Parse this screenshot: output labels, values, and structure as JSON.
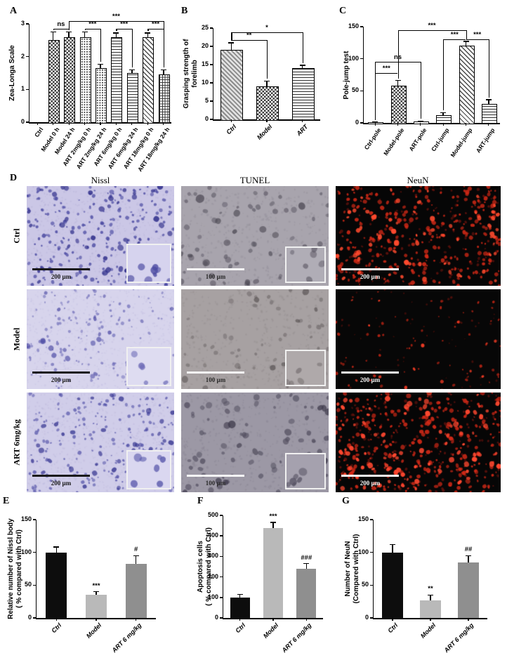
{
  "panel_labels": {
    "A": "A",
    "B": "B",
    "C": "C",
    "D": "D",
    "E": "E",
    "F": "F",
    "G": "G"
  },
  "chart_data": [
    {
      "panel": "A",
      "type": "bar",
      "ylabel": "Zea-Longa Scale",
      "ylim": [
        0,
        3
      ],
      "yticks": [
        0,
        1,
        2,
        3
      ],
      "categories": [
        "Ctrl",
        "Model 0 h",
        "Model 24 h",
        "ART 2mg/kg 0 h",
        "ART 2mg/kg 24 h",
        "ART 6mg/kg 0 h",
        "ART 6mg/kg 24 h",
        "ART 18mg/kg 0 h",
        "ART 18mg/kg 24 h"
      ],
      "values": [
        0,
        2.5,
        2.6,
        2.6,
        1.65,
        2.6,
        1.5,
        2.6,
        1.45
      ],
      "errors": [
        0,
        0.25,
        0.15,
        0.15,
        0.12,
        0.12,
        0.1,
        0.12,
        0.15
      ],
      "patterns": [
        "plain",
        "checker",
        "checker",
        "dots",
        "dots",
        "hlines",
        "hlines",
        "diag",
        "grid"
      ],
      "significance": [
        {
          "from": 1,
          "to": 2,
          "label": "ns",
          "level": 2.86
        },
        {
          "from": 3,
          "to": 4,
          "label": "***",
          "level": 2.86
        },
        {
          "from": 5,
          "to": 6,
          "label": "***",
          "level": 2.86
        },
        {
          "from": 7,
          "to": 8,
          "label": "***",
          "level": 2.86
        },
        {
          "from": 2,
          "to": 8,
          "label": "***",
          "level": 3.08
        }
      ]
    },
    {
      "panel": "B",
      "type": "bar",
      "ylabel_lines": [
        "Grasping strength of",
        "forelimb"
      ],
      "ylim": [
        0,
        25
      ],
      "yticks": [
        0,
        5,
        10,
        15,
        20,
        25
      ],
      "categories": [
        "Ctrl",
        "Model",
        "ART"
      ],
      "values": [
        19,
        9,
        14
      ],
      "errors": [
        2,
        1.5,
        0.8
      ],
      "patterns": [
        "diag2",
        "checker",
        "hlines"
      ],
      "significance": [
        {
          "from": 0,
          "to": 1,
          "label": "**",
          "level": 21.8
        },
        {
          "from": 0,
          "to": 2,
          "label": "*",
          "level": 23.8
        }
      ]
    },
    {
      "panel": "C",
      "type": "bar",
      "ylabel": "Pole-jump test",
      "ylim": [
        0,
        150
      ],
      "yticks": [
        0,
        50,
        100,
        150
      ],
      "categories": [
        "Ctrl-pole",
        "Model-pole",
        "ART-pole",
        "Ctrl-jump",
        "Model-jump",
        "ART-jump"
      ],
      "values": [
        1,
        58,
        2,
        12,
        120,
        30
      ],
      "errors": [
        0.5,
        8,
        1,
        4,
        7,
        6
      ],
      "patterns": [
        "plain",
        "checker",
        "plain",
        "hlines",
        "diag",
        "hlines"
      ],
      "significance": [
        {
          "from": 0,
          "to": 1,
          "label": "***",
          "level": 78
        },
        {
          "from": 0,
          "to": 2,
          "label": "ns",
          "level": 95
        },
        {
          "from": 3,
          "to": 4,
          "label": "***",
          "level": 130
        },
        {
          "from": 4,
          "to": 5,
          "label": "***",
          "level": 130
        },
        {
          "from": 1,
          "to": 4,
          "label": "***",
          "level": 145
        }
      ]
    },
    {
      "panel": "E",
      "type": "bar",
      "ylabel_lines": [
        "Relative number of Nissl body",
        "( % compared with Ctrl)"
      ],
      "ylim": [
        0,
        150
      ],
      "yticks": [
        0,
        50,
        100,
        150
      ],
      "categories": [
        "Ctrl",
        "Model",
        "ART 6 mg/kg"
      ],
      "values": [
        100,
        35,
        82
      ],
      "errors": [
        8,
        5,
        13
      ],
      "colors": [
        "#0d0d0d",
        "#b9b9b9",
        "#8f8f8f"
      ],
      "bar_annotations": [
        {
          "bar": 1,
          "label": "***"
        },
        {
          "bar": 2,
          "label": "#"
        }
      ]
    },
    {
      "panel": "F",
      "type": "bar",
      "ylabel_lines": [
        "Apoptosis cells",
        "( % compared with Ctrl)"
      ],
      "ylim": [
        0,
        500
      ],
      "yticks": [
        0,
        100,
        200,
        300,
        400,
        500
      ],
      "categories": [
        "Ctrl",
        "Model",
        "ART 6 mg/kg"
      ],
      "values": [
        100,
        440,
        240
      ],
      "errors": [
        15,
        25,
        25
      ],
      "colors": [
        "#0d0d0d",
        "#b9b9b9",
        "#8f8f8f"
      ],
      "bar_annotations": [
        {
          "bar": 1,
          "label": "***"
        },
        {
          "bar": 2,
          "label": "###"
        }
      ]
    },
    {
      "panel": "G",
      "type": "bar",
      "ylabel_lines": [
        "Number of NeuN",
        "(Compared with Ctrl)"
      ],
      "ylim": [
        0,
        150
      ],
      "yticks": [
        0,
        50,
        100,
        150
      ],
      "categories": [
        "Ctrl",
        "Model",
        "ART 6 mg/kg"
      ],
      "values": [
        100,
        27,
        85
      ],
      "errors": [
        12,
        8,
        10
      ],
      "colors": [
        "#0d0d0d",
        "#b9b9b9",
        "#8f8f8f"
      ],
      "bar_annotations": [
        {
          "bar": 1,
          "label": "**"
        },
        {
          "bar": 2,
          "label": "##"
        }
      ]
    }
  ],
  "panel_d": {
    "columns": [
      "Nissl",
      "TUNEL",
      "NeuN"
    ],
    "rows": [
      "Ctrl",
      "Model",
      "ART 6mg/kg"
    ],
    "images": [
      {
        "row": "Ctrl",
        "col": "Nissl",
        "scale_bar_label": "200 µm",
        "scale_bar_color": "#1a1a1a",
        "scale_text_color": "#1a1a1a",
        "inset": true,
        "inset_w": 60,
        "inset_h": 52,
        "inset_bg": "#d6d3ee",
        "bg": "#cbc7e6",
        "layers": [
          {
            "count": 900,
            "color": "#b7b2d8",
            "rmin": 0.4,
            "rmax": 1.4,
            "alpha": 0.55
          },
          {
            "count": 230,
            "color": "#4b4aa2",
            "rmin": 1.2,
            "rmax": 3.0,
            "alpha": 0.85
          },
          {
            "count": 45,
            "color": "#32318c",
            "rmin": 2.4,
            "rmax": 4.4,
            "alpha": 0.9
          }
        ],
        "inset_cells": {
          "count": 8,
          "color": "#4b4aa2",
          "rmin": 3,
          "rmax": 6,
          "alpha": 0.85
        }
      },
      {
        "row": "Ctrl",
        "col": "TUNEL",
        "scale_bar_label": "100 µm",
        "scale_bar_color": "#f5f5f5",
        "scale_text_color": "#2a2a2a",
        "inset": true,
        "inset_w": 54,
        "inset_h": 48,
        "inset_bg": "#b0adb6",
        "bg": "#a8a4ad",
        "layers": [
          {
            "count": 500,
            "color": "#96929c",
            "rmin": 0.5,
            "rmax": 1.8,
            "alpha": 0.6
          },
          {
            "count": 55,
            "color": "#5f5b67",
            "rmin": 2,
            "rmax": 4.5,
            "alpha": 0.7
          },
          {
            "count": 14,
            "color": "#48444f",
            "rmin": 3.5,
            "rmax": 6,
            "alpha": 0.75
          }
        ],
        "inset_cells": {
          "count": 6,
          "color": "#5f5b67",
          "rmin": 3,
          "rmax": 6,
          "alpha": 0.7
        }
      },
      {
        "row": "Ctrl",
        "col": "NeuN",
        "scale_bar_label": "200 µm",
        "scale_bar_color": "#f5f5f5",
        "scale_text_color": "#f5f5f5",
        "inset": false,
        "bg": "#060606",
        "layers": [
          {
            "count": 130,
            "color": "#6e140e",
            "rmin": 1,
            "rmax": 2.4,
            "alpha": 0.8
          },
          {
            "count": 280,
            "color": "#d32917",
            "rmin": 1.2,
            "rmax": 3.2,
            "alpha": 0.9
          },
          {
            "count": 70,
            "color": "#ff4a2e",
            "rmin": 1.8,
            "rmax": 3.8,
            "alpha": 1
          }
        ]
      },
      {
        "row": "Model",
        "col": "Nissl",
        "scale_bar_label": "200 µm",
        "scale_bar_color": "#1a1a1a",
        "scale_text_color": "#1a1a1a",
        "inset": true,
        "inset_w": 60,
        "inset_h": 52,
        "inset_bg": "#dedcf1",
        "bg": "#d7d4ec",
        "layers": [
          {
            "count": 800,
            "color": "#c5c1e3",
            "rmin": 0.4,
            "rmax": 1.4,
            "alpha": 0.55
          },
          {
            "count": 150,
            "color": "#6f6db8",
            "rmin": 1.0,
            "rmax": 2.6,
            "alpha": 0.75
          },
          {
            "count": 22,
            "color": "#504ea6",
            "rmin": 2.2,
            "rmax": 3.8,
            "alpha": 0.8
          }
        ],
        "inset_cells": {
          "count": 6,
          "color": "#6f6db8",
          "rmin": 3,
          "rmax": 5.5,
          "alpha": 0.75
        }
      },
      {
        "row": "Model",
        "col": "TUNEL",
        "scale_bar_label": "100 µm",
        "scale_bar_color": "#f5f5f5",
        "scale_text_color": "#2a2a2a",
        "inset": true,
        "inset_w": 54,
        "inset_h": 48,
        "inset_bg": "#afa9aa",
        "bg": "#a7a1a2",
        "layers": [
          {
            "count": 500,
            "color": "#969091",
            "rmin": 0.5,
            "rmax": 1.8,
            "alpha": 0.6
          },
          {
            "count": 42,
            "color": "#6e6869",
            "rmin": 2,
            "rmax": 4,
            "alpha": 0.65
          },
          {
            "count": 8,
            "color": "#575152",
            "rmin": 3,
            "rmax": 5,
            "alpha": 0.7
          }
        ],
        "inset_cells": {
          "count": 5,
          "color": "#6e6869",
          "rmin": 3,
          "rmax": 5.5,
          "alpha": 0.65
        }
      },
      {
        "row": "Model",
        "col": "NeuN",
        "scale_bar_label": "200 µm",
        "scale_bar_color": "#f5f5f5",
        "scale_text_color": "#f5f5f5",
        "inset": false,
        "bg": "#070707",
        "layers": [
          {
            "count": 60,
            "color": "#5c120c",
            "rmin": 0.8,
            "rmax": 1.8,
            "alpha": 0.8
          },
          {
            "count": 60,
            "color": "#c02615",
            "rmin": 1,
            "rmax": 2.4,
            "alpha": 0.9
          },
          {
            "count": 14,
            "color": "#f23c24",
            "rmin": 1.4,
            "rmax": 2.8,
            "alpha": 1
          }
        ]
      },
      {
        "row": "ART 6mg/kg",
        "col": "Nissl",
        "scale_bar_label": "200 µm",
        "scale_bar_color": "#1a1a1a",
        "scale_text_color": "#1a1a1a",
        "inset": true,
        "inset_w": 60,
        "inset_h": 52,
        "inset_bg": "#dad7f0",
        "bg": "#d0cde9",
        "layers": [
          {
            "count": 850,
            "color": "#beb9dd",
            "rmin": 0.4,
            "rmax": 1.4,
            "alpha": 0.55
          },
          {
            "count": 200,
            "color": "#5756aa",
            "rmin": 1.1,
            "rmax": 2.8,
            "alpha": 0.8
          },
          {
            "count": 32,
            "color": "#3c3b94",
            "rmin": 2.3,
            "rmax": 4.1,
            "alpha": 0.85
          }
        ],
        "inset_cells": {
          "count": 7,
          "color": "#5756aa",
          "rmin": 3,
          "rmax": 6,
          "alpha": 0.8
        }
      },
      {
        "row": "ART 6mg/kg",
        "col": "TUNEL",
        "scale_bar_label": "100 µm",
        "scale_bar_color": "#f5f5f5",
        "scale_text_color": "#2a2a2a",
        "inset": true,
        "inset_w": 54,
        "inset_h": 48,
        "inset_bg": "#a5a1ae",
        "bg": "#9c98a5",
        "layers": [
          {
            "count": 520,
            "color": "#8b8795",
            "rmin": 0.5,
            "rmax": 1.8,
            "alpha": 0.6
          },
          {
            "count": 65,
            "color": "#545061",
            "rmin": 2,
            "rmax": 4.8,
            "alpha": 0.75
          },
          {
            "count": 16,
            "color": "#403c4d",
            "rmin": 3.5,
            "rmax": 6.2,
            "alpha": 0.8
          }
        ],
        "inset_cells": {
          "count": 6,
          "color": "#545061",
          "rmin": 3,
          "rmax": 6,
          "alpha": 0.75
        }
      },
      {
        "row": "ART 6mg/kg",
        "col": "NeuN",
        "scale_bar_label": "200 µm",
        "scale_bar_color": "#f5f5f5",
        "scale_text_color": "#f5f5f5",
        "inset": false,
        "bg": "#060606",
        "layers": [
          {
            "count": 140,
            "color": "#6e140e",
            "rmin": 1,
            "rmax": 2.5,
            "alpha": 0.8
          },
          {
            "count": 300,
            "color": "#d62a18",
            "rmin": 1.2,
            "rmax": 3.4,
            "alpha": 0.9
          },
          {
            "count": 85,
            "color": "#ff4830",
            "rmin": 1.8,
            "rmax": 4.0,
            "alpha": 1
          }
        ]
      }
    ]
  }
}
